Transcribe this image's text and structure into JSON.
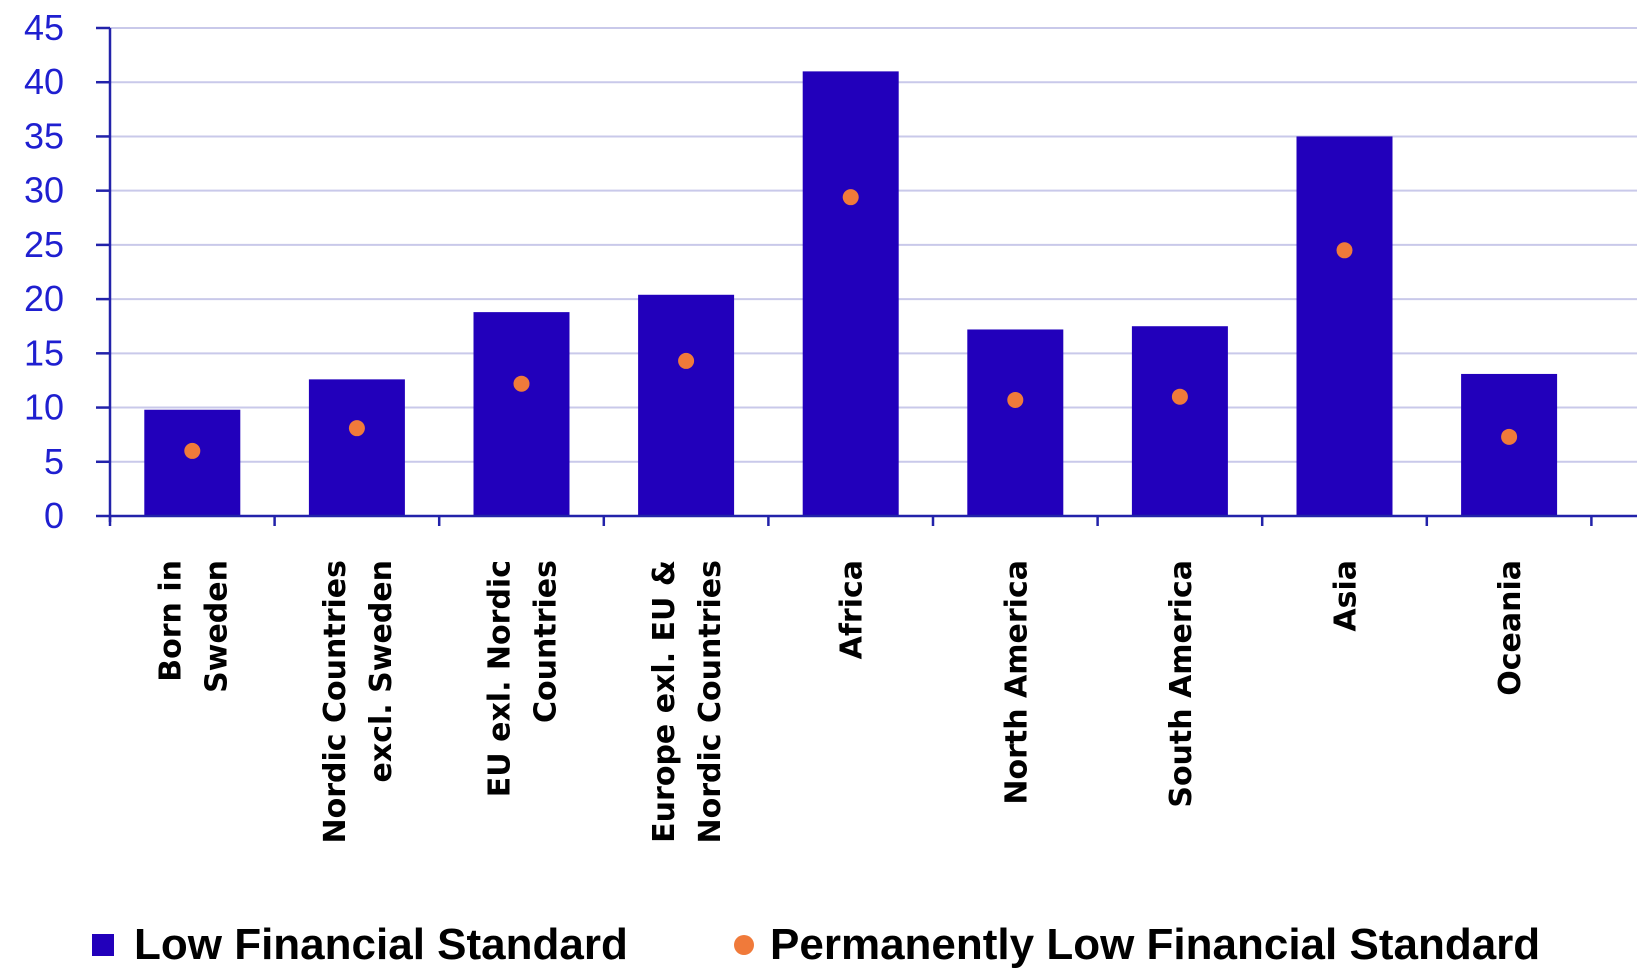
{
  "colors": {
    "bar": "#2200bb",
    "dot": "#f07a3a",
    "grid": "#c9c9ea",
    "axis": "#2222aa",
    "tick_text": "#1f1fd0"
  },
  "chart_data": {
    "type": "bar",
    "title": "",
    "xlabel": "",
    "ylabel": "",
    "ylim": [
      0,
      45
    ],
    "yticks": [
      "0",
      "5",
      "10",
      "15",
      "20",
      "25",
      "30",
      "35",
      "40",
      "45"
    ],
    "grid": true,
    "legend_position": "bottom",
    "categories": [
      [
        "Born in",
        "Sweden"
      ],
      [
        "Nordic Countries",
        "excl. Sweden"
      ],
      [
        "EU exl. Nordic",
        "Countries"
      ],
      [
        "Europe exl. EU &",
        "Nordic Countries"
      ],
      [
        "Africa"
      ],
      [
        "North America"
      ],
      [
        "South America"
      ],
      [
        "Asia"
      ],
      [
        "Oceania"
      ]
    ],
    "series": [
      {
        "name": "Low Financial Standard",
        "mark": "bar",
        "values": [
          9.8,
          12.6,
          18.8,
          20.4,
          41.0,
          17.2,
          17.5,
          35.0,
          13.1
        ]
      },
      {
        "name": "Permanently Low Financial Standard",
        "mark": "dot",
        "values": [
          6.0,
          8.1,
          12.2,
          14.3,
          29.4,
          10.7,
          11.0,
          24.5,
          7.3
        ]
      }
    ]
  }
}
